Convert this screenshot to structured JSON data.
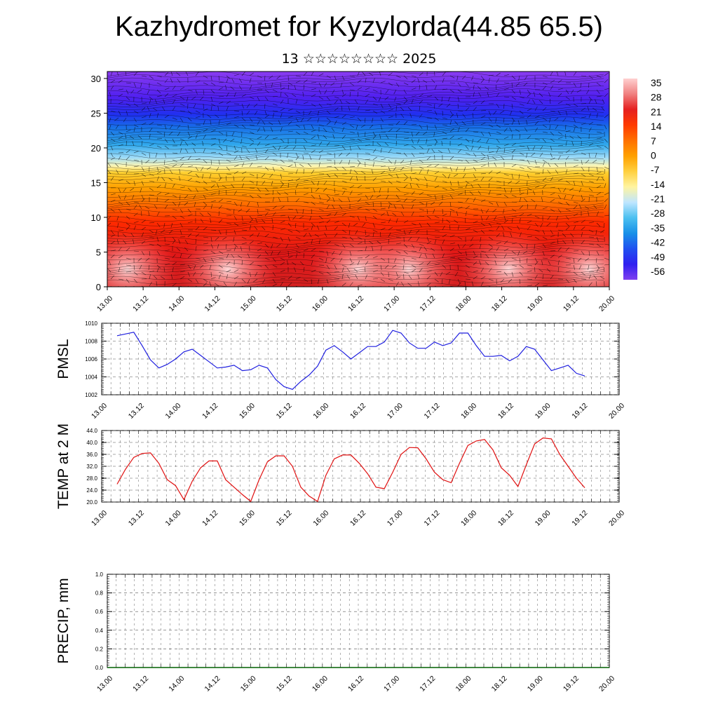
{
  "title": "Kazhydromet for Kyzylorda(44.85 65.5)",
  "subtitle": "13 ☆☆☆☆☆☆☆☆ 2025",
  "time_ticks": [
    "13.00",
    "13.12",
    "14.00",
    "14.12",
    "15.00",
    "15.12",
    "16.00",
    "16.12",
    "17.00",
    "17.12",
    "18.00",
    "18.12",
    "19.00",
    "19.12",
    "20.00"
  ],
  "chart_data": [
    {
      "type": "heatmap",
      "ylim": [
        0,
        31
      ],
      "y_ticks": [
        "0",
        "5",
        "10",
        "15",
        "20",
        "25",
        "30"
      ],
      "colorbar_labels": [
        "35",
        "28",
        "21",
        "14",
        "7",
        "0",
        "-7",
        "-14",
        "-21",
        "-28",
        "-35",
        "-42",
        "-49",
        "-56"
      ],
      "colorbar_colors": [
        "#ffd0d0",
        "#f08080",
        "#e52020",
        "#ff3a00",
        "#ff7000",
        "#ffa000",
        "#ffd040",
        "#fff4a0",
        "#bfe6ff",
        "#4cc0f0",
        "#1890e8",
        "#2050f0",
        "#3020f0",
        "#8040f0"
      ],
      "x_ticks": [
        "13.00",
        "13.12",
        "14.00",
        "14.12",
        "15.00",
        "15.12",
        "16.00",
        "16.12",
        "17.00",
        "17.12",
        "18.00",
        "18.12",
        "19.00",
        "19.12",
        "20.00"
      ]
    },
    {
      "type": "line",
      "ylabel": "PMSL",
      "ylim": [
        1002,
        1010
      ],
      "y_ticks": [
        "1002",
        "1004",
        "1006",
        "1008",
        "1010"
      ],
      "x_ticks": [
        "13.00",
        "13.12",
        "14.00",
        "14.12",
        "15.00",
        "15.12",
        "16.00",
        "16.12",
        "17.00",
        "17.12",
        "18.00",
        "18.12",
        "19.00",
        "19.12",
        "20.00"
      ],
      "color": "#1f1fdf",
      "values": [
        1008.6,
        1008.8,
        1009.0,
        1007.5,
        1005.9,
        1005.0,
        1005.4,
        1006.0,
        1006.8,
        1007.1,
        1006.4,
        1005.7,
        1005.0,
        1005.1,
        1005.3,
        1004.7,
        1004.8,
        1005.3,
        1005.0,
        1003.7,
        1002.9,
        1002.6,
        1003.5,
        1004.2,
        1005.2,
        1007.0,
        1007.5,
        1006.8,
        1006.0,
        1006.7,
        1007.4,
        1007.4,
        1007.9,
        1009.2,
        1008.9,
        1007.8,
        1007.2,
        1007.2,
        1007.9,
        1007.5,
        1007.8,
        1008.9,
        1008.9,
        1007.5,
        1006.3,
        1006.3,
        1006.4,
        1005.8,
        1006.3,
        1007.4,
        1007.1,
        1005.9,
        1004.7,
        1005.0,
        1005.3,
        1004.4,
        1004.1
      ]
    },
    {
      "type": "line",
      "ylabel": "TEMP at 2 M",
      "ylim": [
        20,
        44
      ],
      "y_ticks": [
        "20.0",
        "24.0",
        "28.0",
        "32.0",
        "36.0",
        "40.0",
        "44.0"
      ],
      "x_ticks": [
        "13.00",
        "13.12",
        "14.00",
        "14.12",
        "15.00",
        "15.12",
        "16.00",
        "16.12",
        "17.00",
        "17.12",
        "18.00",
        "18.12",
        "19.00",
        "19.12",
        "20.00"
      ],
      "color": "#e01010",
      "values": [
        26.0,
        31.0,
        35.0,
        36.3,
        36.5,
        33.0,
        27.5,
        25.5,
        20.8,
        27.0,
        31.5,
        33.8,
        33.8,
        27.5,
        25.0,
        22.5,
        20.2,
        27.5,
        33.5,
        35.5,
        35.5,
        32.0,
        25.0,
        22.0,
        20.2,
        29.0,
        34.5,
        35.8,
        35.8,
        33.0,
        29.5,
        25.0,
        24.5,
        30.0,
        36.0,
        38.3,
        38.2,
        34.5,
        30.0,
        27.5,
        26.5,
        33.0,
        39.0,
        40.5,
        41.0,
        37.5,
        31.5,
        29.0,
        25.2,
        32.5,
        39.5,
        41.5,
        41.2,
        36.0,
        32.0,
        28.0,
        24.8
      ]
    },
    {
      "type": "line",
      "ylabel": "PRECIP, mm",
      "ylim": [
        0,
        1
      ],
      "y_ticks": [
        "0.0",
        "0.2",
        "0.4",
        "0.6",
        "0.8",
        "1.0"
      ],
      "x_ticks": [
        "13.00",
        "13.12",
        "14.00",
        "14.12",
        "15.00",
        "15.12",
        "16.00",
        "16.12",
        "17.00",
        "17.12",
        "18.00",
        "18.12",
        "19.00",
        "19.12",
        "20.00"
      ],
      "color": "#006000",
      "values": [
        0,
        0,
        0,
        0,
        0,
        0,
        0,
        0,
        0,
        0,
        0,
        0,
        0,
        0,
        0,
        0,
        0,
        0,
        0,
        0,
        0,
        0,
        0,
        0,
        0,
        0,
        0,
        0,
        0,
        0,
        0,
        0,
        0,
        0,
        0,
        0,
        0,
        0,
        0,
        0,
        0,
        0,
        0,
        0,
        0,
        0,
        0,
        0,
        0,
        0,
        0,
        0,
        0,
        0,
        0,
        0,
        0
      ]
    }
  ]
}
